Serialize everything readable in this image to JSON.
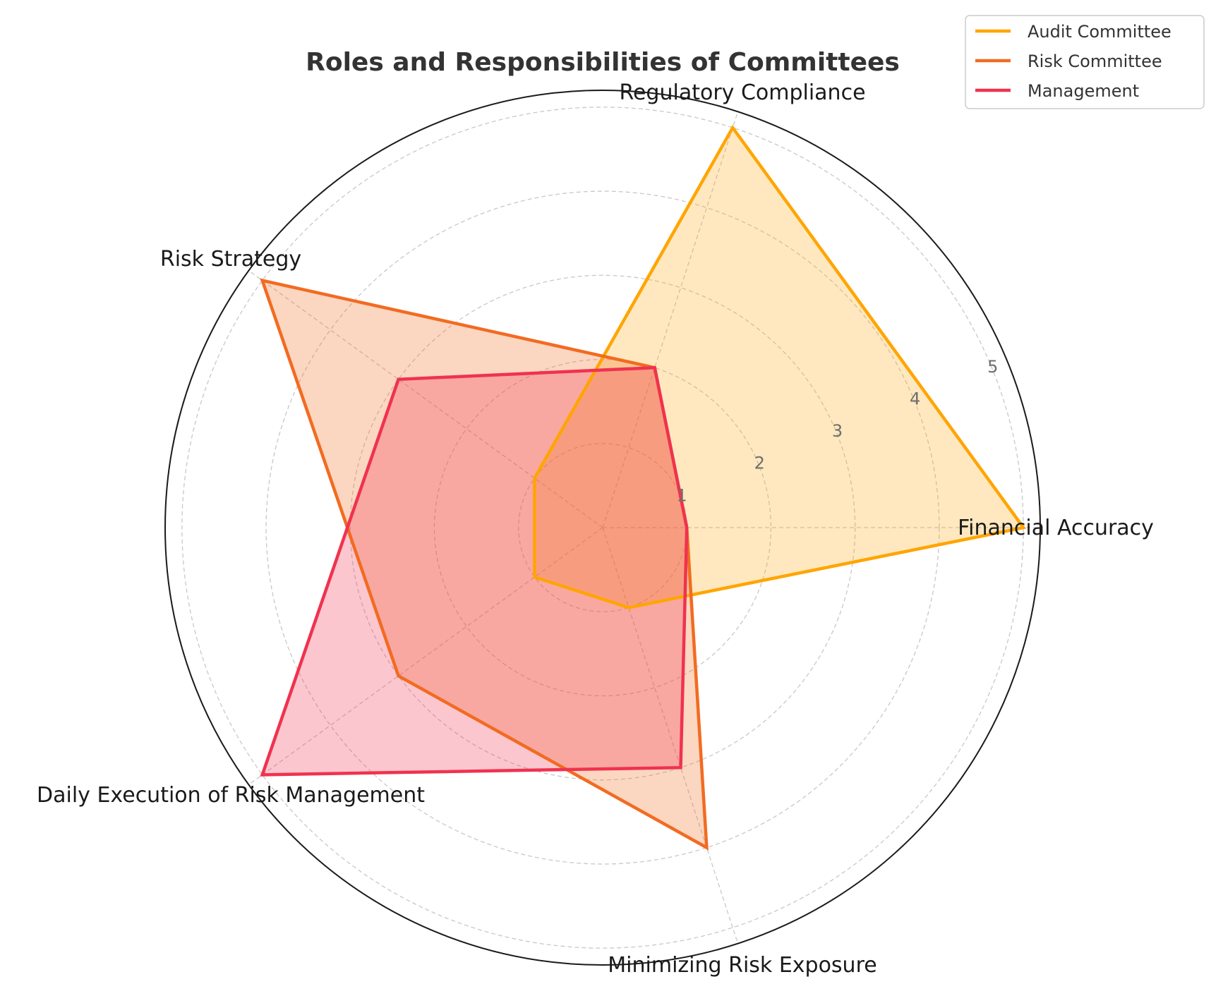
{
  "chart_data": {
    "type": "radar",
    "title": "Roles and Responsibilities of Committees",
    "categories": [
      "Financial Accuracy",
      "Regulatory Compliance",
      "Risk Strategy",
      "Daily Execution of Risk Management",
      "Minimizing Risk Exposure"
    ],
    "r_ticks": [
      "1",
      "2",
      "3",
      "4",
      "5"
    ],
    "rlim": [
      0,
      5.2
    ],
    "grid": true,
    "legend_position": "top-right",
    "series": [
      {
        "name": "Audit Committee",
        "values": [
          5,
          5,
          1,
          1,
          1
        ],
        "color": "#FFA500"
      },
      {
        "name": "Risk Committee",
        "values": [
          1,
          2,
          5,
          3,
          4
        ],
        "color": "#F26B21"
      },
      {
        "name": "Management",
        "values": [
          1,
          2,
          3,
          5,
          3
        ],
        "color": "#F0324F"
      }
    ]
  }
}
